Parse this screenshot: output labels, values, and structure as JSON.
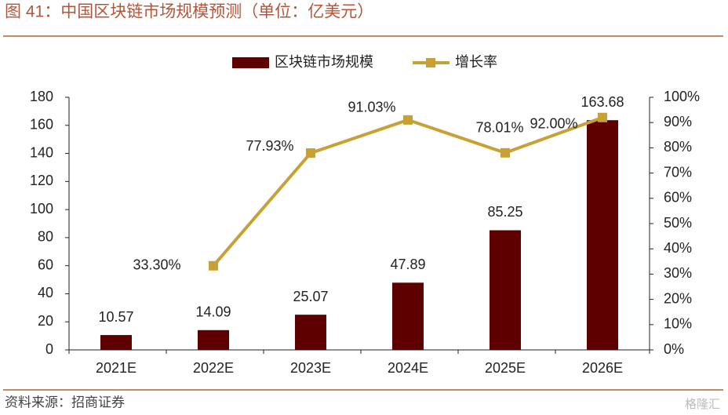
{
  "title": "图 41：中国区块链市场规模预测（单位：亿美元）",
  "source": "资料来源：招商证券",
  "watermark": "格隆汇",
  "chart_data": {
    "type": "bar-line",
    "categories": [
      "2021E",
      "2022E",
      "2023E",
      "2024E",
      "2025E",
      "2026E"
    ],
    "series": [
      {
        "name": "区块链市场规模",
        "type": "bar",
        "color": "#5e0000",
        "values": [
          10.57,
          14.09,
          25.07,
          47.89,
          85.25,
          163.68
        ]
      },
      {
        "name": "增长率",
        "type": "line",
        "axis": "y2",
        "color": "#c8a136",
        "values": [
          null,
          33.3,
          77.93,
          91.03,
          78.01,
          92.0
        ],
        "value_labels": [
          null,
          "33.30%",
          "77.93%",
          "91.03%",
          "78.01%",
          "92.00%"
        ]
      }
    ],
    "ylim": [
      0,
      180
    ],
    "yticks": [
      0,
      20,
      40,
      60,
      80,
      100,
      120,
      140,
      160,
      180
    ],
    "y2lim": [
      0,
      100
    ],
    "y2ticks": [
      {
        "value": 0,
        "label": "0%"
      },
      {
        "value": 10,
        "label": "10%"
      },
      {
        "value": 20,
        "label": "20%"
      },
      {
        "value": 30,
        "label": "30%"
      },
      {
        "value": 40,
        "label": "40%"
      },
      {
        "value": 50,
        "label": "50%"
      },
      {
        "value": 60,
        "label": "60%"
      },
      {
        "value": 70,
        "label": "70%"
      },
      {
        "value": 80,
        "label": "80%"
      },
      {
        "value": 90,
        "label": "90%"
      },
      {
        "value": 100,
        "label": "100%"
      }
    ],
    "grid": false,
    "legend": "top"
  }
}
